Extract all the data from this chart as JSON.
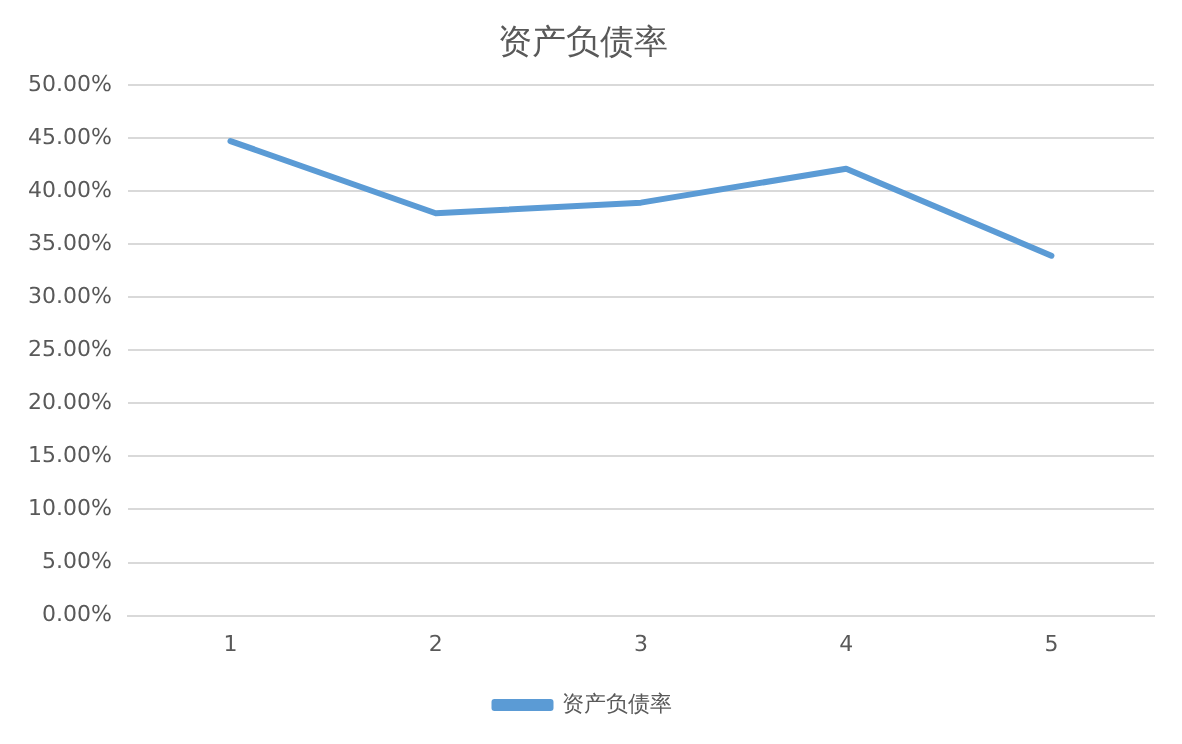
{
  "chart_data": {
    "type": "line",
    "title": "资产负债率",
    "categories": [
      "1",
      "2",
      "3",
      "4",
      "5"
    ],
    "series": [
      {
        "name": "资产负债率",
        "color": "#5b9bd5",
        "values": [
          44.7,
          37.9,
          38.9,
          42.1,
          33.9
        ]
      }
    ],
    "ylim": [
      0,
      50
    ],
    "yticks": [
      {
        "value": 0,
        "label": "0.00%"
      },
      {
        "value": 5,
        "label": "5.00%"
      },
      {
        "value": 10,
        "label": "10.00%"
      },
      {
        "value": 15,
        "label": "15.00%"
      },
      {
        "value": 20,
        "label": "20.00%"
      },
      {
        "value": 25,
        "label": "25.00%"
      },
      {
        "value": 30,
        "label": "30.00%"
      },
      {
        "value": 35,
        "label": "35.00%"
      },
      {
        "value": 40,
        "label": "40.00%"
      },
      {
        "value": 45,
        "label": "45.00%"
      },
      {
        "value": 50,
        "label": "50.00%"
      }
    ],
    "grid": "y",
    "legend": "bottom",
    "marker": "none",
    "line_style": "solid"
  }
}
